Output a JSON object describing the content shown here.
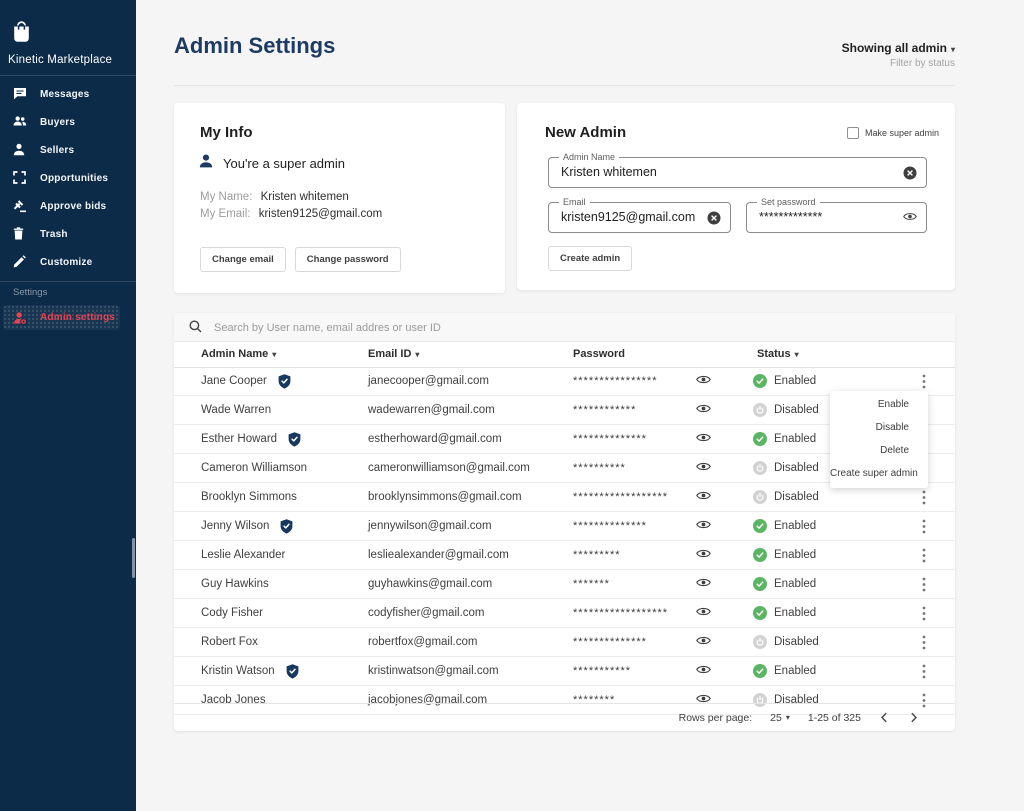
{
  "sidebar": {
    "brand": "Kinetic Marketplace",
    "logo_icon": "shopping-bag-icon",
    "items": [
      {
        "label": "Messages",
        "icon": "chat-icon"
      },
      {
        "label": "Buyers",
        "icon": "buyers-icon"
      },
      {
        "label": "Sellers",
        "icon": "person-icon"
      },
      {
        "label": "Opportunities",
        "icon": "opportunities-icon"
      },
      {
        "label": "Approve bids",
        "icon": "gavel-icon"
      },
      {
        "label": "Trash",
        "icon": "trash-icon"
      },
      {
        "label": "Customize",
        "icon": "pencil-icon"
      }
    ],
    "section_label": "Settings",
    "active_item": {
      "label": "Admin settings",
      "icon": "admin-badge-icon"
    }
  },
  "header": {
    "title": "Admin Settings",
    "filter_label": "Showing all admin",
    "filter_caret": "▾",
    "filter_sublabel": "Filter by status"
  },
  "my_info": {
    "title": "My Info",
    "role_icon": "person-icon",
    "role_text": "You're a super admin",
    "name_label": "My Name:",
    "name_value": "Kristen whitemen",
    "email_label": "My Email:",
    "email_value": "kristen9125@gmail.com",
    "change_email_button": "Change email",
    "change_password_button": "Change password"
  },
  "new_admin": {
    "title": "New Admin",
    "make_super_admin_label": "Make super admin",
    "make_super_admin_checked": false,
    "admin_name_field": {
      "label": "Admin Name",
      "value": "Kristen whitemen",
      "trailing_icon": "clear-icon"
    },
    "email_field": {
      "label": "Email",
      "value": "kristen9125@gmail.com",
      "trailing_icon": "clear-icon"
    },
    "password_field": {
      "label": "Set password",
      "value": "*************",
      "trailing_icon": "eye-icon"
    },
    "create_button": "Create admin"
  },
  "table": {
    "search_icon": "search-icon",
    "search_placeholder": "Search by User name, email addres or user ID",
    "columns": [
      "Admin Name",
      "Email ID",
      "Password",
      "Status"
    ],
    "sort_caret": "▾",
    "status_icons": {
      "Enabled": "check-circle-green-icon",
      "Disabled": "power-circle-gray-icon"
    },
    "rows": [
      {
        "name": "Jane Cooper",
        "super": true,
        "email": "janecooper@gmail.com",
        "password": "****************",
        "status": "Enabled"
      },
      {
        "name": "Wade Warren",
        "super": false,
        "email": "wadewarren@gmail.com",
        "password": "************",
        "status": "Disabled"
      },
      {
        "name": "Esther Howard",
        "super": true,
        "email": "estherhoward@gmail.com",
        "password": "**************",
        "status": "Enabled"
      },
      {
        "name": "Cameron Williamson",
        "super": false,
        "email": "cameronwilliamson@gmail.com",
        "password": "**********",
        "status": "Disabled"
      },
      {
        "name": "Brooklyn Simmons",
        "super": false,
        "email": "brooklynsimmons@gmail.com",
        "password": "******************",
        "status": "Disabled"
      },
      {
        "name": "Jenny Wilson",
        "super": true,
        "email": "jennywilson@gmail.com",
        "password": "**************",
        "status": "Enabled"
      },
      {
        "name": "Leslie Alexander",
        "super": false,
        "email": "lesliealexander@gmail.com",
        "password": "*********",
        "status": "Enabled"
      },
      {
        "name": "Guy Hawkins",
        "super": false,
        "email": "guyhawkins@gmail.com",
        "password": "*******",
        "status": "Enabled"
      },
      {
        "name": "Cody Fisher",
        "super": false,
        "email": "codyfisher@gmail.com",
        "password": "******************",
        "status": "Enabled"
      },
      {
        "name": "Robert Fox",
        "super": false,
        "email": "robertfox@gmail.com",
        "password": "**************",
        "status": "Disabled"
      },
      {
        "name": "Kristin Watson",
        "super": true,
        "email": "kristinwatson@gmail.com",
        "password": "***********",
        "status": "Enabled"
      },
      {
        "name": "Jacob Jones",
        "super": false,
        "email": "jacobjones@gmail.com",
        "password": "********",
        "status": "Disabled"
      }
    ],
    "pagination": {
      "rows_per_page_label": "Rows per page:",
      "rows_per_page_value": "25",
      "rows_per_page_caret": "▾",
      "range_label": "1-25 of 325"
    }
  },
  "context_menu": {
    "items": [
      "Enable",
      "Disable",
      "Delete",
      "Create super admin"
    ]
  },
  "colors": {
    "sidebar_bg": "#0c2b48",
    "accent_red": "#e8414f",
    "title_navy": "#1d3b63",
    "enabled_green": "#5cb565",
    "disabled_gray": "#d2d2d2"
  }
}
